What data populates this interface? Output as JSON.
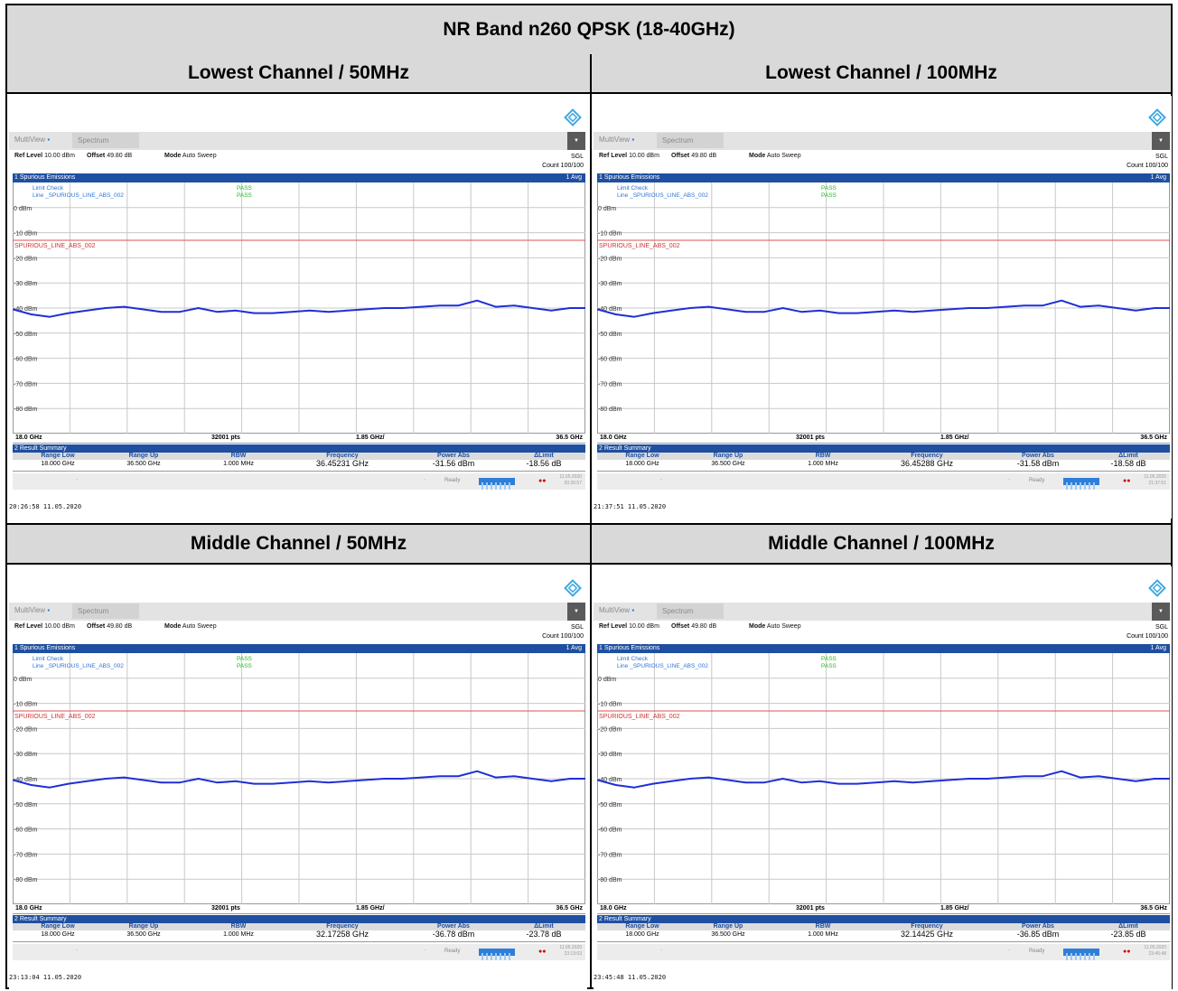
{
  "table": {
    "title": "NR Band n260 QPSK (18-40GHz)",
    "headers": [
      "Lowest Channel / 50MHz",
      "Lowest Channel / 100MHz",
      "Middle Channel / 50MHz",
      "Middle Channel / 100MHz"
    ]
  },
  "common": {
    "multiview": "MultiView",
    "spectrum_tab": "Spectrum",
    "ref_level_label": "Ref Level",
    "ref_level": "10.00 dBm",
    "offset_label": "Offset",
    "offset": "49.80 dB",
    "mode_label": "Mode",
    "mode": "Auto Sweep",
    "sgl": "SGL",
    "count": "Count 100/100",
    "window1_title": "1 Spurious Emissions",
    "avg_label": "1 Avg",
    "limit_check": "Limit Check",
    "limit_line": "Line _SPURIOUS_LINE_ABS_002",
    "pass": "PASS",
    "limit_line_label": "SPURIOUS_LINE_ABS_002",
    "y_labels": [
      "0 dBm",
      "-10 dBm",
      "-20 dBm",
      "-30 dBm",
      "-40 dBm",
      "-50 dBm",
      "-60 dBm",
      "-70 dBm",
      "-80 dBm"
    ],
    "start_freq": "18.0 GHz",
    "points": "32001 pts",
    "span_div": "1.85 GHz/",
    "stop_freq": "36.5 GHz",
    "window2_title": "2 Result Summary",
    "res_headers": [
      "Range Low",
      "Range Up",
      "RBW",
      "Frequency",
      "Power Abs",
      "ΔLimit"
    ],
    "range_low": "18.000 GHz",
    "range_up": "36.500 GHz",
    "rbw": "1.000 MHz",
    "ready": "Ready",
    "status_date": "11.05.2020"
  },
  "chart_data": {
    "type": "line",
    "x_range": [
      18.0,
      36.5
    ],
    "y_range": [
      -90,
      10
    ],
    "ylabel_unit": "dBm",
    "limit_line_dbm": -13,
    "x": [
      18.0,
      18.6,
      19.2,
      19.8,
      20.4,
      21.0,
      21.6,
      22.2,
      22.8,
      23.4,
      24.0,
      24.6,
      25.2,
      25.8,
      26.4,
      27.0,
      27.6,
      28.2,
      28.8,
      29.4,
      30.0,
      30.6,
      31.2,
      31.8,
      32.4,
      33.0,
      33.6,
      34.2,
      34.8,
      35.4,
      36.0,
      36.5
    ],
    "series": [
      {
        "values": [
          -40.5,
          -42.5,
          -43.5,
          -42.0,
          -41.0,
          -40.0,
          -39.5,
          -40.5,
          -41.5,
          -41.5,
          -40.0,
          -41.5,
          -41.0,
          -42.0,
          -42.0,
          -41.5,
          -41.0,
          -41.5,
          -41.0,
          -40.5,
          -40.0,
          -40.0,
          -39.5,
          -39.0,
          -39.0,
          -37.0,
          -39.5,
          -39.0,
          -40.0,
          -41.0,
          -40.0,
          -40.0
        ]
      }
    ]
  },
  "panels": [
    {
      "frequency": "36.45231 GHz",
      "power": "-31.56 dBm",
      "dlimit": "-18.56 dB",
      "status_time": "20:26:57",
      "stamp": "20:26:58  11.05.2020"
    },
    {
      "frequency": "36.45288 GHz",
      "power": "-31.58 dBm",
      "dlimit": "-18.58 dB",
      "status_time": "21:37:51",
      "stamp": "21:37:51  11.05.2020"
    },
    {
      "frequency": "32.17258 GHz",
      "power": "-36.78 dBm",
      "dlimit": "-23.78 dB",
      "status_time": "23:13:03",
      "stamp": "23:13:04  11.05.2020"
    },
    {
      "frequency": "32.14425 GHz",
      "power": "-36.85 dBm",
      "dlimit": "-23.85 dB",
      "status_time": "23:45:48",
      "stamp": "23:45:48  11.05.2020"
    }
  ]
}
